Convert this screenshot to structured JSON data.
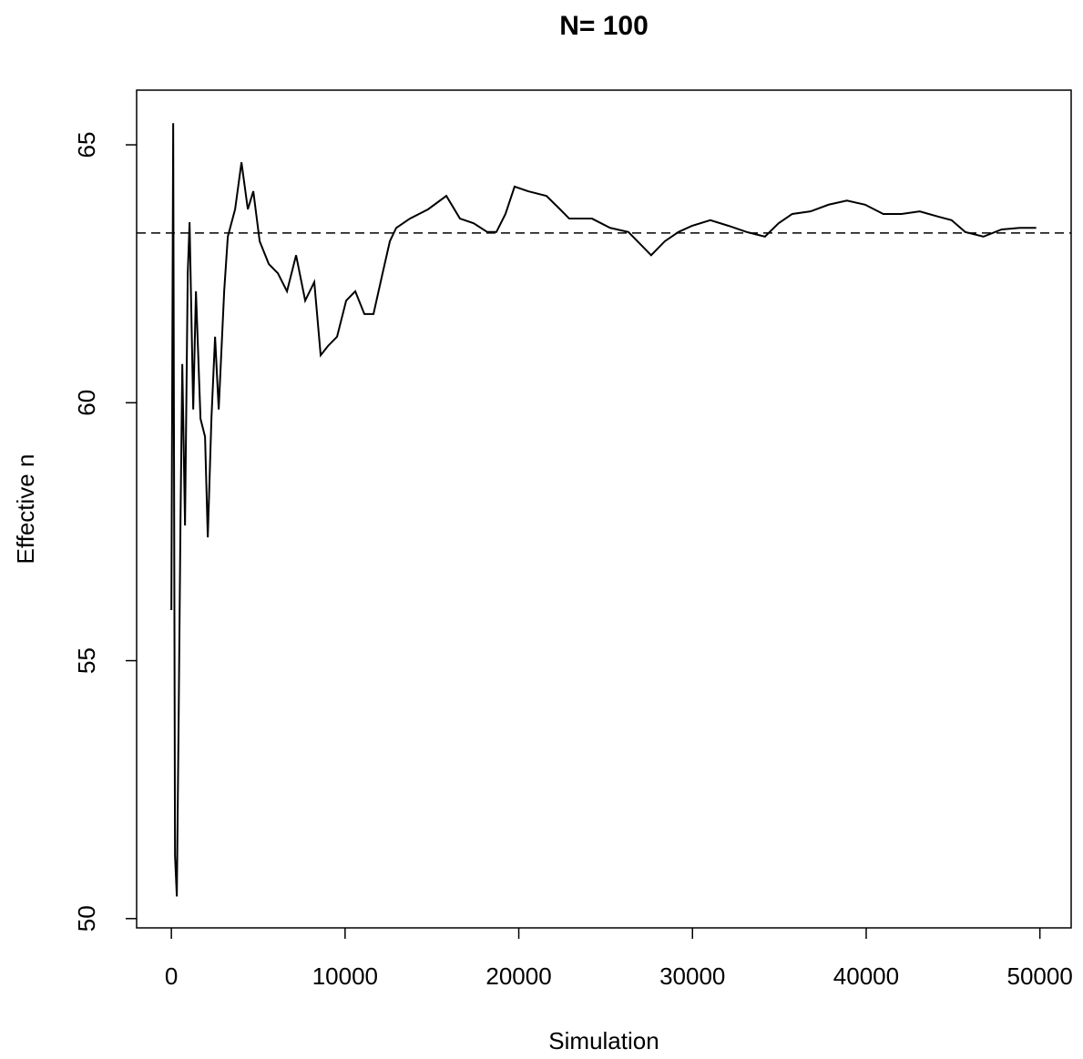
{
  "chart_data": {
    "type": "line",
    "title": "N= 100",
    "x_label": "Simulation",
    "y_label": "Effective n",
    "x": [
      0,
      105,
      210,
      314,
      419,
      524,
      629,
      786,
      943,
      1048,
      1258,
      1415,
      1677,
      1939,
      2096,
      2306,
      2516,
      2725,
      3040,
      3249,
      3669,
      4036,
      4402,
      4717,
      5084,
      5608,
      6132,
      6656,
      7180,
      7704,
      8228,
      8595,
      9015,
      9539,
      10063,
      10587,
      11111,
      11635,
      12159,
      12578,
      12945,
      13731,
      14780,
      15828,
      16614,
      17400,
      18186,
      18710,
      19234,
      19759,
      20545,
      21593,
      22379,
      22903,
      24213,
      25262,
      26310,
      27096,
      27620,
      28406,
      29192,
      29979,
      31027,
      32075,
      33123,
      34171,
      34958,
      35744,
      36792,
      37840,
      38888,
      39936,
      40985,
      42033,
      43081,
      44129,
      44915,
      45702,
      46750,
      47798,
      48846,
      49790
    ],
    "values": [
      55.98,
      65.42,
      51.22,
      50.43,
      53.87,
      57.66,
      60.75,
      57.62,
      62.51,
      63.5,
      59.87,
      62.16,
      59.69,
      59.34,
      57.39,
      59.69,
      61.28,
      59.87,
      62.16,
      63.22,
      63.75,
      64.66,
      63.75,
      64.1,
      63.13,
      62.69,
      62.51,
      62.16,
      62.86,
      61.98,
      62.34,
      60.92,
      61.1,
      61.28,
      61.98,
      62.16,
      61.72,
      61.72,
      62.51,
      63.13,
      63.39,
      63.57,
      63.75,
      64.01,
      63.57,
      63.48,
      63.31,
      63.31,
      63.66,
      64.19,
      64.1,
      64.01,
      63.75,
      63.57,
      63.57,
      63.39,
      63.31,
      63.04,
      62.86,
      63.13,
      63.31,
      63.43,
      63.54,
      63.43,
      63.31,
      63.22,
      63.48,
      63.66,
      63.71,
      63.84,
      63.92,
      63.84,
      63.66,
      63.66,
      63.71,
      63.61,
      63.54,
      63.31,
      63.22,
      63.36,
      63.39,
      63.39
    ],
    "color": "#000000",
    "hline": 63.29,
    "xlim": [
      -2000,
      51800
    ],
    "xticks": [
      0,
      10000,
      20000,
      30000,
      40000,
      50000
    ],
    "ylim": [
      49.82,
      66.06
    ],
    "yticks": [
      50,
      55,
      60,
      65
    ]
  }
}
